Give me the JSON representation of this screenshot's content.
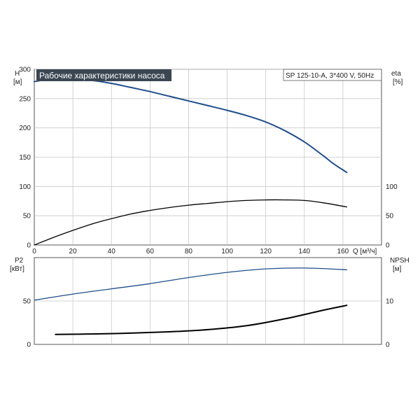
{
  "chart_data": [
    {
      "type": "line",
      "name": "upper",
      "title": "Рабочие характеристики насоса",
      "annotation": "SP 125-10-A, 3*400 V, 50Hz",
      "left_axis": {
        "label": "H",
        "unit": "[м]",
        "ylim": [
          0,
          300
        ],
        "ticks": [
          "0",
          "50",
          "100",
          "150",
          "200",
          "250",
          "300"
        ]
      },
      "right_axis": {
        "label": "eta",
        "unit": "[%]",
        "ylim": [
          0,
          300
        ],
        "ticks": [
          "0",
          "50",
          "100"
        ]
      },
      "x_axis": {
        "label": "Q [м³/ч]",
        "xlim": [
          0,
          180
        ],
        "ticks": [
          "0",
          "20",
          "40",
          "60",
          "80",
          "100",
          "120",
          "140",
          "160"
        ]
      },
      "grid": true,
      "series": [
        {
          "axis": "left",
          "color": "#1f4e8c",
          "x": [
            0,
            10,
            20,
            30,
            40,
            50,
            60,
            70,
            80,
            90,
            100,
            110,
            120,
            130,
            140,
            150,
            155,
            162
          ],
          "y": [
            279,
            284,
            284,
            281,
            276,
            269,
            262,
            254,
            246,
            238,
            230,
            221,
            210,
            195,
            176,
            152,
            139,
            124
          ]
        },
        {
          "axis": "right",
          "color": "#000000",
          "x": [
            0,
            10,
            20,
            30,
            40,
            50,
            60,
            70,
            80,
            90,
            100,
            110,
            120,
            130,
            140,
            150,
            162
          ],
          "y": [
            0,
            13,
            25,
            36,
            45,
            53,
            59,
            64,
            68,
            71,
            74,
            76,
            77,
            77,
            76,
            72,
            65
          ]
        }
      ]
    },
    {
      "type": "line",
      "name": "lower",
      "left_axis": {
        "label": "P2",
        "unit": "[кВт]",
        "ylim": [
          0,
          100
        ],
        "ticks": [
          "0",
          "50"
        ]
      },
      "right_axis": {
        "label": "NPSH",
        "unit": "[м]",
        "ylim": [
          0,
          20
        ],
        "ticks": [
          "0",
          "10"
        ]
      },
      "x_axis": {
        "xlim": [
          0,
          180
        ]
      },
      "grid": true,
      "series": [
        {
          "axis": "left",
          "color": "#1f4e8c",
          "x": [
            0,
            20,
            40,
            60,
            80,
            100,
            120,
            140,
            162
          ],
          "y": [
            51,
            58,
            64,
            70,
            77,
            83,
            87,
            88,
            86
          ]
        },
        {
          "axis": "right",
          "color": "#000000",
          "x": [
            11,
            30,
            50,
            70,
            90,
            110,
            130,
            150,
            162
          ],
          "y": [
            2.3,
            2.4,
            2.6,
            2.9,
            3.4,
            4.3,
            5.9,
            7.9,
            9.0
          ]
        }
      ]
    }
  ]
}
